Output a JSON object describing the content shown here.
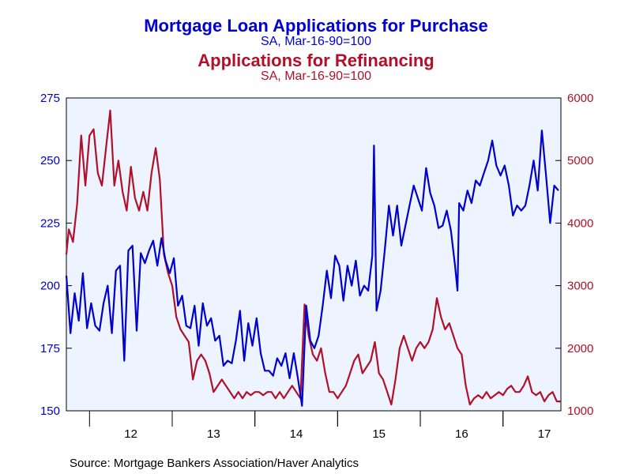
{
  "chart_data": {
    "type": "line",
    "title_primary": "Mortgage Loan Applications for Purchase",
    "subtitle_primary": "SA, Mar-16-90=100",
    "title_secondary": "Applications for Refinancing",
    "subtitle_secondary": "SA, Mar-16-90=100",
    "source": "Source:  Mortgage Bankers Association/Haver Analytics",
    "colors": {
      "purchase": "#0000cc",
      "refinance": "#b0102a",
      "plot_bg": "#eef4ff",
      "frame": "#000000"
    },
    "x_ticks": [
      "12",
      "13",
      "14",
      "15",
      "16",
      "17"
    ],
    "xlim": [
      2011.72,
      2017.7
    ],
    "y_left": {
      "ticks": [
        "275",
        "250",
        "225",
        "200",
        "175",
        "150"
      ],
      "lim": [
        150,
        275
      ]
    },
    "y_right": {
      "ticks": [
        "6000",
        "5000",
        "4000",
        "3000",
        "2000",
        "1000"
      ],
      "lim": [
        1000,
        6000
      ]
    },
    "grid": false,
    "series": [
      {
        "axis": "left",
        "points": [
          [
            2011.72,
            204
          ],
          [
            2011.77,
            181
          ],
          [
            2011.82,
            197
          ],
          [
            2011.87,
            186
          ],
          [
            2011.92,
            205
          ],
          [
            2011.97,
            183
          ],
          [
            2012.02,
            193
          ],
          [
            2012.07,
            184
          ],
          [
            2012.12,
            182
          ],
          [
            2012.17,
            193
          ],
          [
            2012.22,
            200
          ],
          [
            2012.27,
            181
          ],
          [
            2012.32,
            206
          ],
          [
            2012.37,
            208
          ],
          [
            2012.42,
            170
          ],
          [
            2012.47,
            214
          ],
          [
            2012.52,
            216
          ],
          [
            2012.57,
            182
          ],
          [
            2012.62,
            213
          ],
          [
            2012.67,
            209
          ],
          [
            2012.72,
            214
          ],
          [
            2012.77,
            218
          ],
          [
            2012.82,
            208
          ],
          [
            2012.87,
            219
          ],
          [
            2012.92,
            210
          ],
          [
            2012.97,
            205
          ],
          [
            2013.02,
            211
          ],
          [
            2013.07,
            192
          ],
          [
            2013.12,
            196
          ],
          [
            2013.17,
            184
          ],
          [
            2013.22,
            183
          ],
          [
            2013.27,
            192
          ],
          [
            2013.32,
            176
          ],
          [
            2013.37,
            193
          ],
          [
            2013.42,
            184
          ],
          [
            2013.47,
            187
          ],
          [
            2013.52,
            178
          ],
          [
            2013.57,
            180
          ],
          [
            2013.62,
            168
          ],
          [
            2013.67,
            170
          ],
          [
            2013.72,
            169
          ],
          [
            2013.77,
            178
          ],
          [
            2013.82,
            190
          ],
          [
            2013.87,
            170
          ],
          [
            2013.92,
            185
          ],
          [
            2013.97,
            176
          ],
          [
            2014.02,
            187
          ],
          [
            2014.07,
            173
          ],
          [
            2014.12,
            166
          ],
          [
            2014.17,
            166
          ],
          [
            2014.22,
            164
          ],
          [
            2014.27,
            171
          ],
          [
            2014.32,
            168
          ],
          [
            2014.37,
            173
          ],
          [
            2014.42,
            163
          ],
          [
            2014.47,
            173
          ],
          [
            2014.52,
            163
          ],
          [
            2014.57,
            152
          ],
          [
            2014.62,
            192
          ],
          [
            2014.67,
            178
          ],
          [
            2014.72,
            175
          ],
          [
            2014.77,
            180
          ],
          [
            2014.82,
            192
          ],
          [
            2014.87,
            206
          ],
          [
            2014.92,
            195
          ],
          [
            2014.97,
            212
          ],
          [
            2015.02,
            208
          ],
          [
            2015.07,
            194
          ],
          [
            2015.12,
            208
          ],
          [
            2015.17,
            200
          ],
          [
            2015.22,
            210
          ],
          [
            2015.27,
            196
          ],
          [
            2015.32,
            200
          ],
          [
            2015.37,
            198
          ],
          [
            2015.42,
            212
          ],
          [
            2015.44,
            256
          ],
          [
            2015.47,
            190
          ],
          [
            2015.52,
            198
          ],
          [
            2015.57,
            214
          ],
          [
            2015.62,
            232
          ],
          [
            2015.67,
            220
          ],
          [
            2015.72,
            232
          ],
          [
            2015.77,
            216
          ],
          [
            2015.82,
            224
          ],
          [
            2015.87,
            232
          ],
          [
            2015.92,
            240
          ],
          [
            2015.97,
            235
          ],
          [
            2016.02,
            230
          ],
          [
            2016.07,
            247
          ],
          [
            2016.12,
            237
          ],
          [
            2016.17,
            232
          ],
          [
            2016.22,
            223
          ],
          [
            2016.27,
            224
          ],
          [
            2016.32,
            230
          ],
          [
            2016.37,
            222
          ],
          [
            2016.42,
            208
          ],
          [
            2016.45,
            198
          ],
          [
            2016.47,
            233
          ],
          [
            2016.52,
            230
          ],
          [
            2016.57,
            238
          ],
          [
            2016.62,
            233
          ],
          [
            2016.67,
            242
          ],
          [
            2016.72,
            240
          ],
          [
            2016.77,
            245
          ],
          [
            2016.82,
            250
          ],
          [
            2016.87,
            258
          ],
          [
            2016.92,
            248
          ],
          [
            2016.97,
            244
          ],
          [
            2017.02,
            248
          ],
          [
            2017.07,
            240
          ],
          [
            2017.12,
            228
          ],
          [
            2017.17,
            232
          ],
          [
            2017.22,
            230
          ],
          [
            2017.27,
            232
          ],
          [
            2017.32,
            240
          ],
          [
            2017.37,
            250
          ],
          [
            2017.42,
            238
          ],
          [
            2017.47,
            262
          ],
          [
            2017.52,
            244
          ],
          [
            2017.57,
            225
          ],
          [
            2017.62,
            240
          ],
          [
            2017.67,
            238
          ]
        ]
      },
      {
        "axis": "right",
        "points": [
          [
            2011.72,
            3500
          ],
          [
            2011.75,
            3900
          ],
          [
            2011.8,
            3700
          ],
          [
            2011.85,
            4300
          ],
          [
            2011.9,
            5400
          ],
          [
            2011.95,
            4600
          ],
          [
            2012.0,
            5400
          ],
          [
            2012.05,
            5500
          ],
          [
            2012.1,
            4800
          ],
          [
            2012.15,
            4600
          ],
          [
            2012.2,
            5200
          ],
          [
            2012.25,
            5800
          ],
          [
            2012.3,
            4600
          ],
          [
            2012.35,
            5000
          ],
          [
            2012.4,
            4500
          ],
          [
            2012.45,
            4200
          ],
          [
            2012.5,
            4900
          ],
          [
            2012.55,
            4400
          ],
          [
            2012.6,
            4200
          ],
          [
            2012.65,
            4500
          ],
          [
            2012.7,
            4200
          ],
          [
            2012.75,
            4800
          ],
          [
            2012.8,
            5200
          ],
          [
            2012.85,
            4700
          ],
          [
            2012.9,
            3500
          ],
          [
            2012.95,
            3200
          ],
          [
            2013.0,
            3000
          ],
          [
            2013.05,
            2500
          ],
          [
            2013.1,
            2300
          ],
          [
            2013.15,
            2200
          ],
          [
            2013.2,
            2100
          ],
          [
            2013.25,
            1500
          ],
          [
            2013.3,
            1800
          ],
          [
            2013.35,
            1900
          ],
          [
            2013.4,
            1800
          ],
          [
            2013.45,
            1600
          ],
          [
            2013.5,
            1300
          ],
          [
            2013.55,
            1400
          ],
          [
            2013.6,
            1500
          ],
          [
            2013.65,
            1400
          ],
          [
            2013.7,
            1300
          ],
          [
            2013.75,
            1200
          ],
          [
            2013.8,
            1300
          ],
          [
            2013.85,
            1200
          ],
          [
            2013.9,
            1300
          ],
          [
            2013.95,
            1250
          ],
          [
            2014.0,
            1300
          ],
          [
            2014.05,
            1300
          ],
          [
            2014.1,
            1250
          ],
          [
            2014.15,
            1300
          ],
          [
            2014.2,
            1300
          ],
          [
            2014.25,
            1200
          ],
          [
            2014.3,
            1300
          ],
          [
            2014.35,
            1200
          ],
          [
            2014.4,
            1300
          ],
          [
            2014.45,
            1400
          ],
          [
            2014.5,
            1300
          ],
          [
            2014.55,
            1200
          ],
          [
            2014.6,
            2700
          ],
          [
            2014.65,
            2200
          ],
          [
            2014.7,
            1900
          ],
          [
            2014.75,
            1800
          ],
          [
            2014.8,
            2000
          ],
          [
            2014.85,
            1600
          ],
          [
            2014.9,
            1300
          ],
          [
            2014.95,
            1300
          ],
          [
            2015.0,
            1200
          ],
          [
            2015.05,
            1300
          ],
          [
            2015.1,
            1400
          ],
          [
            2015.15,
            1600
          ],
          [
            2015.2,
            1800
          ],
          [
            2015.25,
            1900
          ],
          [
            2015.3,
            1600
          ],
          [
            2015.35,
            1700
          ],
          [
            2015.4,
            1800
          ],
          [
            2015.45,
            2100
          ],
          [
            2015.5,
            1600
          ],
          [
            2015.55,
            1500
          ],
          [
            2015.6,
            1300
          ],
          [
            2015.65,
            1100
          ],
          [
            2015.7,
            1500
          ],
          [
            2015.75,
            2000
          ],
          [
            2015.8,
            2200
          ],
          [
            2015.85,
            2000
          ],
          [
            2015.9,
            1800
          ],
          [
            2015.95,
            2000
          ],
          [
            2016.0,
            2100
          ],
          [
            2016.05,
            2000
          ],
          [
            2016.1,
            2100
          ],
          [
            2016.15,
            2300
          ],
          [
            2016.2,
            2800
          ],
          [
            2016.25,
            2500
          ],
          [
            2016.3,
            2300
          ],
          [
            2016.35,
            2400
          ],
          [
            2016.4,
            2200
          ],
          [
            2016.45,
            2000
          ],
          [
            2016.5,
            1900
          ],
          [
            2016.55,
            1400
          ],
          [
            2016.6,
            1100
          ],
          [
            2016.65,
            1200
          ],
          [
            2016.7,
            1250
          ],
          [
            2016.75,
            1200
          ],
          [
            2016.8,
            1300
          ],
          [
            2016.85,
            1200
          ],
          [
            2016.9,
            1250
          ],
          [
            2016.95,
            1300
          ],
          [
            2017.0,
            1250
          ],
          [
            2017.05,
            1350
          ],
          [
            2017.1,
            1400
          ],
          [
            2017.15,
            1300
          ],
          [
            2017.2,
            1300
          ],
          [
            2017.25,
            1400
          ],
          [
            2017.3,
            1550
          ],
          [
            2017.35,
            1300
          ],
          [
            2017.4,
            1250
          ],
          [
            2017.45,
            1300
          ],
          [
            2017.5,
            1150
          ],
          [
            2017.55,
            1250
          ],
          [
            2017.6,
            1300
          ],
          [
            2017.65,
            1150
          ],
          [
            2017.7,
            1150
          ]
        ]
      }
    ]
  }
}
